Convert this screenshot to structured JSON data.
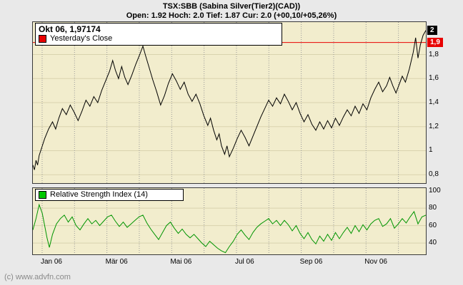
{
  "header": {
    "title": "TSX:SBB (Sabina Silver(Tier2)(CAD))",
    "ohlc": "Open: 1.92 Hoch: 2.0 Tief: 1.87 Cur: 2.0 (+00,10/+05,26%)"
  },
  "price_pane": {
    "crosshair_label": "Okt 06, 1,97174",
    "close_legend": "Yesterday's Close",
    "current_chip": {
      "v": 2.0,
      "label": "2"
    },
    "close_chip": {
      "v": 1.9,
      "label": "1,9"
    },
    "axis_labels": [
      {
        "v": 1.8,
        "label": "1,8"
      },
      {
        "v": 1.6,
        "label": "1,6"
      },
      {
        "v": 1.4,
        "label": "1,4"
      },
      {
        "v": 1.2,
        "label": "1,2"
      },
      {
        "v": 1.0,
        "label": "1"
      },
      {
        "v": 0.8,
        "label": "0,8"
      }
    ]
  },
  "rsi_pane": {
    "legend": "Relative Strength Index (14)",
    "axis_labels": [
      {
        "v": 100,
        "label": "100"
      },
      {
        "v": 80,
        "label": "80"
      },
      {
        "v": 60,
        "label": "60"
      },
      {
        "v": 40,
        "label": "40"
      }
    ]
  },
  "x_axis": {
    "labels": [
      {
        "t": 0.0236,
        "label": "Jan 06"
      },
      {
        "t": 0.1884,
        "label": "Mär 06"
      },
      {
        "t": 0.3533,
        "label": "Mai 06"
      },
      {
        "t": 0.5181,
        "label": "Jul 06"
      },
      {
        "t": 0.6829,
        "label": "Sep 06"
      },
      {
        "t": 0.8478,
        "label": "Nov 06"
      }
    ]
  },
  "footer": {
    "copyright": "(c) www.advfn.com"
  },
  "colors": {
    "page_bg": "#e9e9e9",
    "pane_bg": "#f2edcd",
    "price_line": "#000000",
    "close_line": "#e80000",
    "rsi_line": "#009500",
    "rsi_swatch": "#00c800",
    "close_swatch": "#e80000",
    "chip_current_bg": "#000000",
    "chip_close_bg": "#e80000"
  },
  "chart_data": [
    {
      "type": "line",
      "name": "TSX:SBB price (CAD)",
      "title": "TSX:SBB (Sabina Silver(Tier2)(CAD))",
      "x_unit": "fraction of chart span, Jan 06 - Dez 06",
      "ylim": [
        0.73,
        2.07
      ],
      "color": "#000000",
      "yesterday_close": 1.9,
      "current_price": 2.0,
      "open": 1.92,
      "hoch": 2.0,
      "tief": 1.87,
      "cur": 2.0,
      "hgrid": [
        1.8,
        1.6,
        1.4,
        1.2,
        1.0,
        0.8
      ],
      "month_grid_t": [
        0.0236,
        0.106,
        0.1884,
        0.2708,
        0.3533,
        0.4357,
        0.5181,
        0.6005,
        0.6829,
        0.7654,
        0.8478,
        0.9302
      ],
      "points": [
        [
          0.0,
          0.88
        ],
        [
          0.004,
          0.84
        ],
        [
          0.008,
          0.92
        ],
        [
          0.012,
          0.88
        ],
        [
          0.016,
          0.96
        ],
        [
          0.022,
          1.02
        ],
        [
          0.03,
          1.1
        ],
        [
          0.04,
          1.18
        ],
        [
          0.05,
          1.24
        ],
        [
          0.058,
          1.18
        ],
        [
          0.066,
          1.27
        ],
        [
          0.075,
          1.35
        ],
        [
          0.085,
          1.3
        ],
        [
          0.095,
          1.38
        ],
        [
          0.105,
          1.32
        ],
        [
          0.115,
          1.25
        ],
        [
          0.125,
          1.33
        ],
        [
          0.135,
          1.42
        ],
        [
          0.145,
          1.37
        ],
        [
          0.155,
          1.45
        ],
        [
          0.165,
          1.4
        ],
        [
          0.175,
          1.5
        ],
        [
          0.185,
          1.58
        ],
        [
          0.195,
          1.66
        ],
        [
          0.203,
          1.75
        ],
        [
          0.21,
          1.67
        ],
        [
          0.218,
          1.6
        ],
        [
          0.226,
          1.7
        ],
        [
          0.234,
          1.61
        ],
        [
          0.242,
          1.55
        ],
        [
          0.252,
          1.63
        ],
        [
          0.262,
          1.72
        ],
        [
          0.272,
          1.8
        ],
        [
          0.28,
          1.87
        ],
        [
          0.287,
          1.79
        ],
        [
          0.295,
          1.7
        ],
        [
          0.305,
          1.59
        ],
        [
          0.315,
          1.49
        ],
        [
          0.325,
          1.38
        ],
        [
          0.335,
          1.46
        ],
        [
          0.345,
          1.56
        ],
        [
          0.355,
          1.64
        ],
        [
          0.365,
          1.58
        ],
        [
          0.375,
          1.51
        ],
        [
          0.385,
          1.57
        ],
        [
          0.395,
          1.47
        ],
        [
          0.405,
          1.41
        ],
        [
          0.415,
          1.47
        ],
        [
          0.425,
          1.39
        ],
        [
          0.435,
          1.29
        ],
        [
          0.445,
          1.21
        ],
        [
          0.452,
          1.27
        ],
        [
          0.46,
          1.17
        ],
        [
          0.468,
          1.09
        ],
        [
          0.474,
          1.14
        ],
        [
          0.48,
          1.04
        ],
        [
          0.488,
          0.97
        ],
        [
          0.494,
          1.04
        ],
        [
          0.5,
          0.95
        ],
        [
          0.51,
          1.02
        ],
        [
          0.52,
          1.1
        ],
        [
          0.53,
          1.17
        ],
        [
          0.54,
          1.11
        ],
        [
          0.55,
          1.04
        ],
        [
          0.56,
          1.12
        ],
        [
          0.57,
          1.2
        ],
        [
          0.58,
          1.28
        ],
        [
          0.59,
          1.35
        ],
        [
          0.6,
          1.42
        ],
        [
          0.61,
          1.37
        ],
        [
          0.62,
          1.44
        ],
        [
          0.63,
          1.39
        ],
        [
          0.64,
          1.47
        ],
        [
          0.65,
          1.41
        ],
        [
          0.66,
          1.34
        ],
        [
          0.67,
          1.4
        ],
        [
          0.68,
          1.31
        ],
        [
          0.69,
          1.24
        ],
        [
          0.7,
          1.3
        ],
        [
          0.71,
          1.22
        ],
        [
          0.72,
          1.17
        ],
        [
          0.73,
          1.24
        ],
        [
          0.74,
          1.18
        ],
        [
          0.75,
          1.25
        ],
        [
          0.76,
          1.19
        ],
        [
          0.77,
          1.27
        ],
        [
          0.78,
          1.21
        ],
        [
          0.79,
          1.28
        ],
        [
          0.8,
          1.34
        ],
        [
          0.81,
          1.29
        ],
        [
          0.82,
          1.37
        ],
        [
          0.83,
          1.31
        ],
        [
          0.84,
          1.39
        ],
        [
          0.85,
          1.34
        ],
        [
          0.86,
          1.44
        ],
        [
          0.87,
          1.51
        ],
        [
          0.88,
          1.57
        ],
        [
          0.89,
          1.49
        ],
        [
          0.9,
          1.54
        ],
        [
          0.908,
          1.61
        ],
        [
          0.916,
          1.54
        ],
        [
          0.924,
          1.48
        ],
        [
          0.932,
          1.55
        ],
        [
          0.94,
          1.62
        ],
        [
          0.948,
          1.57
        ],
        [
          0.958,
          1.68
        ],
        [
          0.968,
          1.82
        ],
        [
          0.974,
          1.94
        ],
        [
          0.98,
          1.77
        ],
        [
          0.986,
          1.88
        ],
        [
          0.993,
          1.96
        ],
        [
          1.0,
          2.0
        ]
      ]
    },
    {
      "type": "line",
      "name": "Relative Strength Index (14)",
      "x_unit": "fraction of chart span, Jan 06 - Dez 06",
      "ylim": [
        27,
        103
      ],
      "color": "#009500",
      "hgrid": [
        80,
        60,
        40
      ],
      "points": [
        [
          0.0,
          55
        ],
        [
          0.008,
          68
        ],
        [
          0.016,
          84
        ],
        [
          0.024,
          74
        ],
        [
          0.03,
          60
        ],
        [
          0.036,
          46
        ],
        [
          0.042,
          35
        ],
        [
          0.05,
          50
        ],
        [
          0.06,
          62
        ],
        [
          0.07,
          68
        ],
        [
          0.08,
          72
        ],
        [
          0.09,
          64
        ],
        [
          0.1,
          70
        ],
        [
          0.11,
          60
        ],
        [
          0.12,
          55
        ],
        [
          0.13,
          62
        ],
        [
          0.14,
          68
        ],
        [
          0.15,
          62
        ],
        [
          0.16,
          66
        ],
        [
          0.17,
          60
        ],
        [
          0.18,
          65
        ],
        [
          0.19,
          70
        ],
        [
          0.2,
          72
        ],
        [
          0.21,
          65
        ],
        [
          0.22,
          59
        ],
        [
          0.23,
          64
        ],
        [
          0.24,
          58
        ],
        [
          0.25,
          62
        ],
        [
          0.26,
          66
        ],
        [
          0.27,
          70
        ],
        [
          0.28,
          72
        ],
        [
          0.29,
          63
        ],
        [
          0.3,
          56
        ],
        [
          0.31,
          50
        ],
        [
          0.32,
          44
        ],
        [
          0.33,
          52
        ],
        [
          0.34,
          60
        ],
        [
          0.35,
          64
        ],
        [
          0.36,
          57
        ],
        [
          0.37,
          51
        ],
        [
          0.38,
          56
        ],
        [
          0.39,
          50
        ],
        [
          0.4,
          46
        ],
        [
          0.41,
          50
        ],
        [
          0.42,
          45
        ],
        [
          0.43,
          40
        ],
        [
          0.44,
          36
        ],
        [
          0.45,
          42
        ],
        [
          0.46,
          38
        ],
        [
          0.47,
          34
        ],
        [
          0.48,
          31
        ],
        [
          0.49,
          29
        ],
        [
          0.5,
          36
        ],
        [
          0.51,
          42
        ],
        [
          0.52,
          50
        ],
        [
          0.53,
          55
        ],
        [
          0.54,
          49
        ],
        [
          0.55,
          44
        ],
        [
          0.56,
          52
        ],
        [
          0.57,
          58
        ],
        [
          0.58,
          62
        ],
        [
          0.59,
          65
        ],
        [
          0.6,
          68
        ],
        [
          0.61,
          62
        ],
        [
          0.62,
          66
        ],
        [
          0.63,
          60
        ],
        [
          0.64,
          66
        ],
        [
          0.65,
          61
        ],
        [
          0.66,
          54
        ],
        [
          0.67,
          60
        ],
        [
          0.68,
          51
        ],
        [
          0.69,
          45
        ],
        [
          0.7,
          52
        ],
        [
          0.71,
          44
        ],
        [
          0.72,
          39
        ],
        [
          0.73,
          48
        ],
        [
          0.74,
          42
        ],
        [
          0.75,
          50
        ],
        [
          0.76,
          43
        ],
        [
          0.77,
          52
        ],
        [
          0.78,
          45
        ],
        [
          0.79,
          52
        ],
        [
          0.8,
          58
        ],
        [
          0.81,
          51
        ],
        [
          0.82,
          60
        ],
        [
          0.83,
          53
        ],
        [
          0.84,
          61
        ],
        [
          0.85,
          55
        ],
        [
          0.86,
          62
        ],
        [
          0.87,
          66
        ],
        [
          0.88,
          68
        ],
        [
          0.89,
          59
        ],
        [
          0.9,
          62
        ],
        [
          0.91,
          68
        ],
        [
          0.92,
          57
        ],
        [
          0.93,
          62
        ],
        [
          0.94,
          68
        ],
        [
          0.95,
          63
        ],
        [
          0.96,
          70
        ],
        [
          0.97,
          76
        ],
        [
          0.98,
          62
        ],
        [
          0.99,
          70
        ],
        [
          1.0,
          72
        ]
      ]
    }
  ]
}
